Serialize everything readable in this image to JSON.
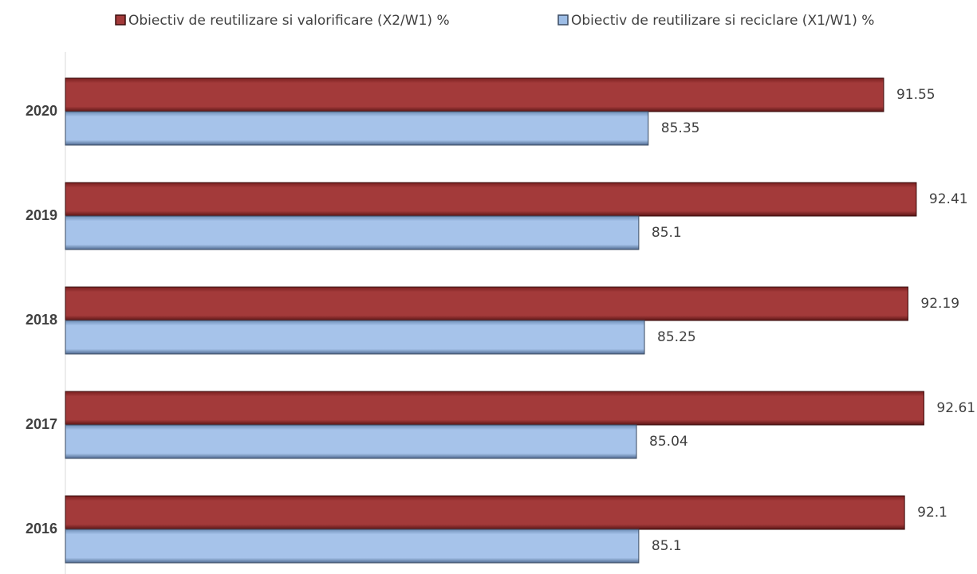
{
  "chart_data": {
    "type": "bar",
    "orientation": "horizontal",
    "categories": [
      "2020",
      "2019",
      "2018",
      "2017",
      "2016"
    ],
    "series": [
      {
        "name": "Obiectiv de reutilizare si valorificare (X2/W1) %",
        "color": "#a33a3a",
        "values": [
          91.55,
          92.41,
          92.19,
          92.61,
          92.1
        ]
      },
      {
        "name": "Obiectiv de reutilizare si reciclare (X1/W1) %",
        "color": "#9dbde6",
        "values": [
          85.35,
          85.1,
          85.25,
          85.04,
          85.1
        ]
      }
    ],
    "xlim": [
      70,
      93
    ],
    "legend": "top"
  }
}
